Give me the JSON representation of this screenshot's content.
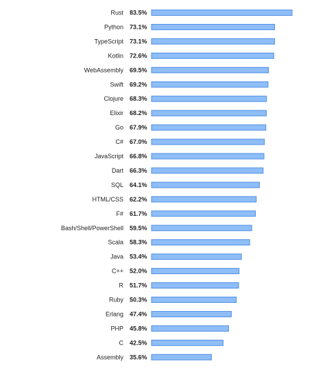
{
  "chart_data": {
    "type": "bar",
    "orientation": "horizontal",
    "categories": [
      "Rust",
      "Python",
      "TypeScript",
      "Kotlin",
      "WebAssembly",
      "Swift",
      "Clojure",
      "Elixir",
      "Go",
      "C#",
      "JavaScript",
      "Dart",
      "SQL",
      "HTML/CSS",
      "F#",
      "Bash/Shell/PowerShell",
      "Scala",
      "Java",
      "C++",
      "R",
      "Ruby",
      "Erlang",
      "PHP",
      "C",
      "Assembly"
    ],
    "values": [
      83.5,
      73.1,
      73.1,
      72.6,
      69.5,
      69.2,
      68.3,
      68.2,
      67.9,
      67.0,
      66.8,
      66.3,
      64.1,
      62.2,
      61.7,
      59.5,
      58.3,
      53.4,
      52.0,
      51.7,
      50.3,
      47.4,
      45.8,
      42.5,
      35.6
    ],
    "value_labels": [
      "83.5%",
      "73.1%",
      "73.1%",
      "72.6%",
      "69.5%",
      "69.2%",
      "68.3%",
      "68.2%",
      "67.9%",
      "67.0%",
      "66.8%",
      "66.3%",
      "64.1%",
      "62.2%",
      "61.7%",
      "59.5%",
      "58.3%",
      "53.4%",
      "52.0%",
      "51.7%",
      "50.3%",
      "47.4%",
      "45.8%",
      "42.5%",
      "35.6%"
    ],
    "title": "",
    "xlabel": "",
    "ylabel": "",
    "xlim": [
      0,
      83.5
    ],
    "grid": false,
    "colors": {
      "bar_fill": "#8fbef7",
      "bar_stroke": "#4f8fe6",
      "text": "#222222"
    }
  }
}
